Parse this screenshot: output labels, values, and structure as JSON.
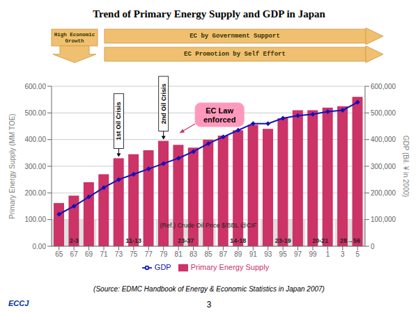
{
  "chart_data": {
    "type": "bar",
    "title": "Trend of Primary Energy Supply and GDP in Japan",
    "categories": [
      "65",
      "67",
      "69",
      "71",
      "73",
      "75",
      "77",
      "79",
      "81",
      "83",
      "85",
      "87",
      "89",
      "91",
      "93",
      "95",
      "97",
      "99",
      "1",
      "3",
      "5"
    ],
    "series": [
      {
        "name": "Primary Energy Supply",
        "type": "bar",
        "color": "#cc3366",
        "values": [
          162,
          190,
          240,
          270,
          330,
          345,
          360,
          395,
          380,
          370,
          400,
          415,
          435,
          455,
          440,
          480,
          510,
          510,
          520,
          525,
          560
        ]
      },
      {
        "name": "GDP",
        "type": "line",
        "color": "#1111bb",
        "marker": "diamond",
        "axis": "y2",
        "values": [
          120000,
          150000,
          185000,
          220000,
          250000,
          270000,
          290000,
          310000,
          330000,
          355000,
          385000,
          410000,
          435000,
          460000,
          460000,
          480000,
          490000,
          495000,
          505000,
          510000,
          540000
        ]
      }
    ],
    "ylabel": "Primary Energy Supply (MM TOE)",
    "y2label": "GDP (Bil. ¥ in 2000)",
    "ylim": [
      0,
      600
    ],
    "yticks": [
      {
        "value": 0,
        "label": "0.00"
      },
      {
        "value": 100,
        "label": "100.00"
      },
      {
        "value": 200,
        "label": "200.00"
      },
      {
        "value": 300,
        "label": "300.00"
      },
      {
        "value": 400,
        "label": "400.00"
      },
      {
        "value": 500,
        "label": "500.00"
      },
      {
        "value": 600,
        "label": "600.00"
      }
    ],
    "y2lim": [
      0,
      600000
    ],
    "y2ticks": [
      0,
      {
        "value": 100000,
        "label": "100,000"
      },
      {
        "value": 200000,
        "label": "200,000"
      },
      {
        "value": 300000,
        "label": "300,000"
      },
      {
        "value": 400000,
        "label": "400,000"
      },
      {
        "value": 500000,
        "label": "500,000"
      },
      {
        "value": 600000,
        "label": "600,000"
      }
    ],
    "grid": true,
    "legend": "bottom",
    "annotations": [
      {
        "text": "1st Oil Crisis",
        "x": "73",
        "y": 330
      },
      {
        "text": "2nd Oil Crisis",
        "x": "79",
        "y": 395
      },
      {
        "text": "EC Law\nenforced",
        "x": "81",
        "y": 420,
        "color": "#ff99bb"
      }
    ],
    "bands": {
      "title": "(Ref.) Crude Oil Price  $/BBL @CIF",
      "ranges": [
        {
          "label": "2-3",
          "start": "65",
          "end": "69",
          "color": "#dcdcdc"
        },
        {
          "label": "11-13",
          "start": "73",
          "end": "77",
          "color": "#f8f8f8"
        },
        {
          "label": "23-37",
          "start": "79",
          "end": "85",
          "color": "#dcdcdc"
        },
        {
          "label": "14-18",
          "start": "87",
          "end": "91",
          "color": "#f8f8f8"
        },
        {
          "label": "23-19",
          "start": "93",
          "end": "97",
          "color": "#dcdcdc"
        },
        {
          "label": "20-21",
          "start": "99",
          "end": "1",
          "color": "#f8f8f8"
        },
        {
          "label": "28→56",
          "start": "3",
          "end": "5",
          "color": "#dcdcdc"
        }
      ]
    },
    "header": {
      "color": "#f0c070",
      "edge_color": "#d4a050",
      "left": "High Economic\nGrowth",
      "top": "EC by Government Support",
      "bottom": "EC Promotion by Self Effort"
    },
    "source": "(Source: EDMC Handbook of Energy & Economic Statistics in Japan 2007)",
    "page_number": "3",
    "logo_text": "ECCJ"
  }
}
